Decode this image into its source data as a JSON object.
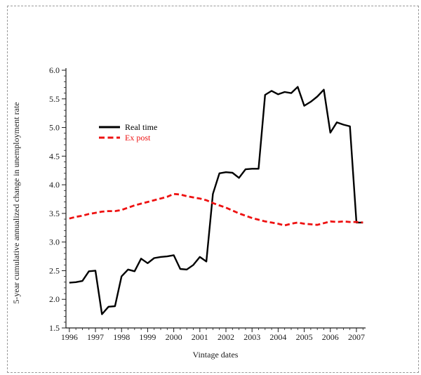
{
  "figure": {
    "y_axis_title": "5-year cumulative annualized change in unemployment rate",
    "x_axis_title": "Vintage dates",
    "legend": {
      "items": [
        {
          "label": "Real time",
          "color": "#000000",
          "style": "solid"
        },
        {
          "label": "Ex post",
          "color": "#ee1111",
          "style": "dashed"
        }
      ]
    },
    "colors": {
      "axis": "#1a1a1a",
      "text": "#1a1a1a",
      "border": "#9a9a9a"
    }
  },
  "chart_data": {
    "type": "line",
    "title": "",
    "xlabel": "Vintage dates",
    "ylabel": "5-year cumulative annualized change in unemployment rate",
    "x": [
      1996.0,
      1996.25,
      1996.5,
      1996.75,
      1997.0,
      1997.25,
      1997.5,
      1997.75,
      1998.0,
      1998.25,
      1998.5,
      1998.75,
      1999.0,
      1999.25,
      1999.5,
      1999.75,
      2000.0,
      2000.25,
      2000.5,
      2000.75,
      2001.0,
      2001.25,
      2001.5,
      2001.75,
      2002.0,
      2002.25,
      2002.5,
      2002.75,
      2003.0,
      2003.25,
      2003.5,
      2003.75,
      2004.0,
      2004.25,
      2004.5,
      2004.75,
      2005.0,
      2005.25,
      2005.5,
      2005.75,
      2006.0,
      2006.25,
      2006.5,
      2006.75,
      2007.0,
      2007.25
    ],
    "series": [
      {
        "name": "Real time",
        "color": "#000000",
        "dash": "solid",
        "line_width": 2.4,
        "values": [
          2.29,
          2.3,
          2.32,
          2.49,
          2.5,
          1.74,
          1.87,
          1.88,
          2.4,
          2.52,
          2.49,
          2.71,
          2.63,
          2.72,
          2.74,
          2.75,
          2.77,
          2.53,
          2.52,
          2.6,
          2.74,
          2.66,
          3.84,
          4.2,
          4.22,
          4.21,
          4.12,
          4.27,
          4.28,
          4.28,
          5.57,
          5.64,
          5.58,
          5.62,
          5.6,
          5.71,
          5.38,
          5.45,
          5.54,
          5.66,
          4.91,
          5.09,
          5.05,
          5.02,
          3.34,
          3.34
        ]
      },
      {
        "name": "Ex post",
        "color": "#ee1111",
        "dash": "dashed",
        "line_width": 2.8,
        "values": [
          3.41,
          3.44,
          3.46,
          3.49,
          3.51,
          3.53,
          3.54,
          3.54,
          3.56,
          3.6,
          3.64,
          3.67,
          3.7,
          3.73,
          3.76,
          3.79,
          3.84,
          3.83,
          3.8,
          3.78,
          3.76,
          3.73,
          3.68,
          3.64,
          3.6,
          3.55,
          3.5,
          3.46,
          3.42,
          3.39,
          3.36,
          3.34,
          3.32,
          3.29,
          3.32,
          3.34,
          3.32,
          3.31,
          3.3,
          3.33,
          3.36,
          3.35,
          3.36,
          3.35,
          3.35,
          3.34
        ]
      }
    ],
    "xlim": [
      1995.87,
      2007.35
    ],
    "ylim": [
      1.5,
      6.0
    ],
    "yticks": [
      1.5,
      2.0,
      2.5,
      3.0,
      3.5,
      4.0,
      4.5,
      5.0,
      5.5,
      6.0
    ],
    "ytick_labels": [
      "1.5",
      "2.0",
      "2.5",
      "3.0",
      "3.5",
      "4.0",
      "4.5",
      "5.0",
      "5.5",
      "6.0"
    ],
    "xticks": [
      1996,
      1997,
      1998,
      1999,
      2000,
      2001,
      2002,
      2003,
      2004,
      2005,
      2006,
      2007
    ],
    "xtick_labels": [
      "1996",
      "1997",
      "1998",
      "1999",
      "2000",
      "2001",
      "2002",
      "2003",
      "2004",
      "2005",
      "2006",
      "2007"
    ],
    "y_minor_step": 0.1,
    "x_minor_step": 0.25,
    "grid": false,
    "legend_position": "upper-left-inside"
  }
}
